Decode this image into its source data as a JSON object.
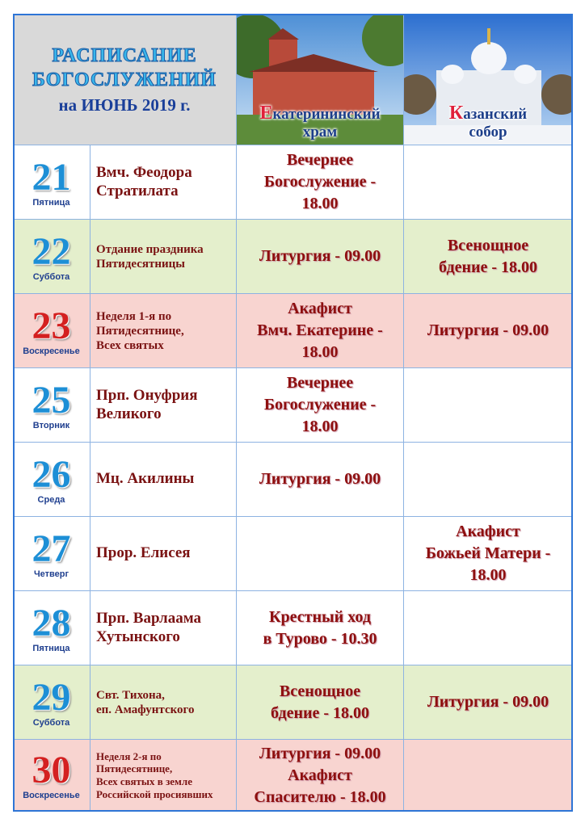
{
  "header": {
    "title_lines": [
      "РАСПИСАНИЕ",
      "БОГОСЛУЖЕНИЙ"
    ],
    "subtitle": "на ИЮНЬ 2019 г.",
    "columns": [
      [
        "Екатерининский",
        "храм"
      ],
      [
        "Казанский",
        "собор"
      ]
    ]
  },
  "rows": [
    {
      "day": 21,
      "weekday": "Пятница",
      "feast": [
        "Вмч. Феодора",
        "Стратилата"
      ],
      "service_1": [
        "Вечернее",
        "Богослужение -",
        "18.00"
      ],
      "service_2": null
    },
    {
      "day": 22,
      "weekday": "Суббота",
      "feast": [
        "Отдание праздника",
        "Пятидесятницы"
      ],
      "service_1": [
        "Литургия - 09.00"
      ],
      "service_2": [
        "Всенощное",
        "бдение - 18.00"
      ]
    },
    {
      "day": 23,
      "weekday": "Воскресенье",
      "feast": [
        "Неделя 1-я по",
        "Пятидесятнице,",
        "Всех святых"
      ],
      "service_1": [
        "Акафист",
        "Вмч. Екатерине -",
        "18.00"
      ],
      "service_2": [
        "Литургия - 09.00"
      ]
    },
    {
      "day": 25,
      "weekday": "Вторник",
      "feast": [
        "Прп. Онуфрия",
        "Великого"
      ],
      "service_1": [
        "Вечернее",
        "Богослужение -",
        "18.00"
      ],
      "service_2": null
    },
    {
      "day": 26,
      "weekday": "Среда",
      "feast": [
        "Мц. Акилины"
      ],
      "service_1": [
        "Литургия - 09.00"
      ],
      "service_2": null
    },
    {
      "day": 27,
      "weekday": "Четверг",
      "feast": [
        "Прор. Елисея"
      ],
      "service_1": null,
      "service_2": [
        "Акафист",
        "Божьей Матери -",
        "18.00"
      ]
    },
    {
      "day": 28,
      "weekday": "Пятница",
      "feast": [
        "Прп. Варлаама",
        "Хутынского"
      ],
      "service_1": [
        "Крестный ход",
        "в Турово - 10.30"
      ],
      "service_2": null
    },
    {
      "day": 29,
      "weekday": "Суббота",
      "feast": [
        "Свт. Тихона,",
        "еп. Амафунтского"
      ],
      "service_1": [
        "Всенощное",
        "бдение - 18.00"
      ],
      "service_2": [
        "Литургия - 09.00"
      ]
    },
    {
      "day": 30,
      "weekday": "Воскресенье",
      "feast": [
        "Неделя 2-я по",
        "Пятидесятнице,",
        "Всех святых в земле",
        "Российской просиявших"
      ],
      "service_1": [
        "Литургия - 09.00",
        "Акафист",
        "Спасителю - 18.00"
      ],
      "service_2": null
    }
  ]
}
